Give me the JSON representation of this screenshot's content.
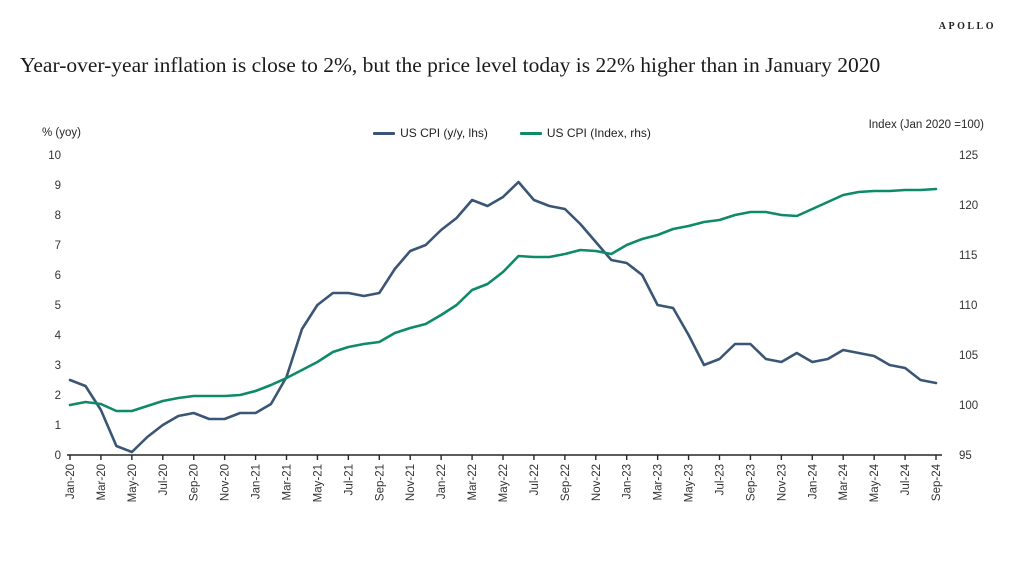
{
  "header": {
    "brand": "APOLLO"
  },
  "title": "Year-over-year inflation is close to 2%, but the price level today is 22% higher than in January 2020",
  "chart_data": {
    "type": "line",
    "grid": false,
    "legend_position": "top-center",
    "x": [
      "Jan-20",
      "Feb-20",
      "Mar-20",
      "Apr-20",
      "May-20",
      "Jun-20",
      "Jul-20",
      "Aug-20",
      "Sep-20",
      "Oct-20",
      "Nov-20",
      "Dec-20",
      "Jan-21",
      "Feb-21",
      "Mar-21",
      "Apr-21",
      "May-21",
      "Jun-21",
      "Jul-21",
      "Aug-21",
      "Sep-21",
      "Oct-21",
      "Nov-21",
      "Dec-21",
      "Jan-22",
      "Feb-22",
      "Mar-22",
      "Apr-22",
      "May-22",
      "Jun-22",
      "Jul-22",
      "Aug-22",
      "Sep-22",
      "Oct-22",
      "Nov-22",
      "Dec-22",
      "Jan-23",
      "Feb-23",
      "Mar-23",
      "Apr-23",
      "May-23",
      "Jun-23",
      "Jul-23",
      "Aug-23",
      "Sep-23",
      "Oct-23",
      "Nov-23",
      "Dec-23",
      "Jan-24",
      "Feb-24",
      "Mar-24",
      "Apr-24",
      "May-24",
      "Jun-24",
      "Jul-24",
      "Aug-24",
      "Sep-24"
    ],
    "x_tick_labels": [
      "Jan-20",
      "Mar-20",
      "May-20",
      "Jul-20",
      "Sep-20",
      "Nov-20",
      "Jan-21",
      "Mar-21",
      "May-21",
      "Jul-21",
      "Sep-21",
      "Nov-21",
      "Jan-22",
      "Mar-22",
      "May-22",
      "Jul-22",
      "Sep-22",
      "Nov-22",
      "Jan-23",
      "Mar-23",
      "May-23",
      "Jul-23",
      "Sep-23",
      "Nov-23",
      "Jan-24",
      "Mar-24",
      "May-24",
      "Jul-24",
      "Sep-24"
    ],
    "left_axis": {
      "label": "% (yoy)",
      "min": 0,
      "max": 10,
      "ticks": [
        0,
        1,
        2,
        3,
        4,
        5,
        6,
        7,
        8,
        9,
        10
      ]
    },
    "right_axis": {
      "label": "Index (Jan 2020 =100)",
      "min": 95,
      "max": 125,
      "ticks": [
        95,
        100,
        105,
        110,
        115,
        120,
        125
      ]
    },
    "series": [
      {
        "name": "US CPI (y/y, lhs)",
        "axis": "left",
        "color": "#3A5674",
        "values": [
          2.5,
          2.3,
          1.5,
          0.3,
          0.1,
          0.6,
          1.0,
          1.3,
          1.4,
          1.2,
          1.2,
          1.4,
          1.4,
          1.7,
          2.6,
          4.2,
          5.0,
          5.4,
          5.4,
          5.3,
          5.4,
          6.2,
          6.8,
          7.0,
          7.5,
          7.9,
          8.5,
          8.3,
          8.6,
          9.1,
          8.5,
          8.3,
          8.2,
          7.7,
          7.1,
          6.5,
          6.4,
          6.0,
          5.0,
          4.9,
          4.0,
          3.0,
          3.2,
          3.7,
          3.7,
          3.2,
          3.1,
          3.4,
          3.1,
          3.2,
          3.5,
          3.4,
          3.3,
          3.0,
          2.9,
          2.5,
          2.4
        ]
      },
      {
        "name": "US CPI (Index, rhs)",
        "axis": "right",
        "color": "#0E8A68",
        "values": [
          100.0,
          100.3,
          100.1,
          99.4,
          99.4,
          99.9,
          100.4,
          100.7,
          100.9,
          100.9,
          100.9,
          101.0,
          101.4,
          102.0,
          102.7,
          103.5,
          104.3,
          105.3,
          105.8,
          106.1,
          106.3,
          107.2,
          107.7,
          108.1,
          109.0,
          110.0,
          111.5,
          112.1,
          113.3,
          114.9,
          114.8,
          114.8,
          115.1,
          115.5,
          115.4,
          115.1,
          116.0,
          116.6,
          117.0,
          117.6,
          117.9,
          118.3,
          118.5,
          119.0,
          119.3,
          119.3,
          119.0,
          118.9,
          119.6,
          120.3,
          121.0,
          121.3,
          121.4,
          121.4,
          121.5,
          121.5,
          121.6
        ]
      }
    ]
  }
}
